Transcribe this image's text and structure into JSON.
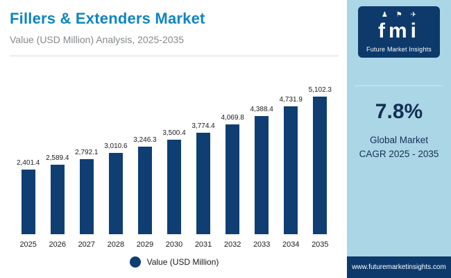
{
  "header": {
    "title": "Fillers & Extenders Market",
    "subtitle": "Value (USD Million) Analysis, 2025-2035"
  },
  "sidebar": {
    "logo": {
      "text": "fmi",
      "caption": "Future Market Insights",
      "icons": [
        "person-icon",
        "flag-icon",
        "plane-icon"
      ]
    },
    "cagr": {
      "value": "7.8%",
      "label_line1": "Global Market",
      "label_line2": "CAGR 2025 - 2035"
    },
    "footer": "www.futuremarketinsights.com"
  },
  "chart_data": {
    "type": "bar",
    "title": "Fillers & Extenders Market",
    "subtitle": "Value (USD Million) Analysis, 2025-2035",
    "categories": [
      "2025",
      "2026",
      "2027",
      "2028",
      "2029",
      "2030",
      "2031",
      "2032",
      "2033",
      "2034",
      "2035"
    ],
    "values": [
      2401.4,
      2589.4,
      2792.1,
      3010.6,
      3246.3,
      3500.4,
      3774.4,
      4069.8,
      4388.4,
      4731.9,
      5102.3
    ],
    "value_labels": [
      "2,401.4",
      "2,589.4",
      "2,792.1",
      "3,010.6",
      "3,246.3",
      "3,500.4",
      "3,774.4",
      "4,069.8",
      "4,388.4",
      "4,731.9",
      "5,102.3"
    ],
    "legend": "Value (USD Million)",
    "ylabel": "Value (USD Million)",
    "xlabel": "",
    "ylim": [
      0,
      5102.3
    ],
    "grid": false,
    "legend_position": "bottom",
    "bar_color": "#0f3e73"
  },
  "colors": {
    "title_accent": "#0e86c0",
    "subtitle_gray": "#85898c",
    "bar_navy": "#0f3e73",
    "panel_background": "#abd6e6",
    "brand_navy": "#0d3a6b",
    "cagr_text": "#132f55"
  }
}
